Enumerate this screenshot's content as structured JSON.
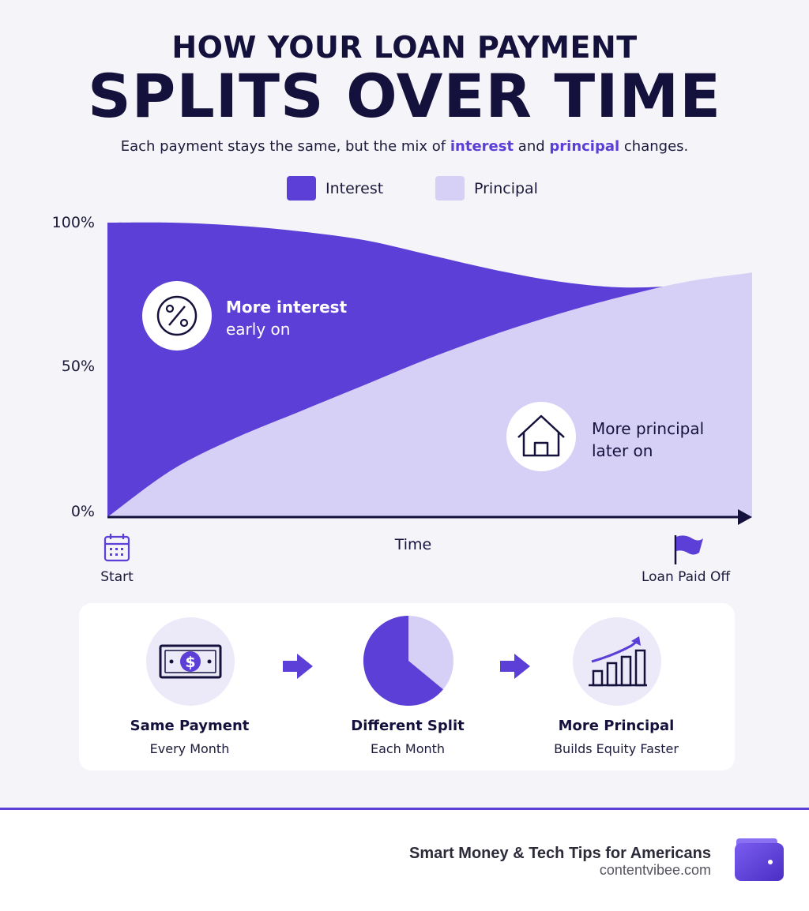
{
  "header": {
    "title_top": "HOW YOUR LOAN PAYMENT",
    "title_main": "SPLITS OVER TIME",
    "subtitle_pre": "Each payment stays the same, but the mix of ",
    "subtitle_interest": "interest",
    "subtitle_and": " and ",
    "subtitle_principal": "principal",
    "subtitle_post": " changes."
  },
  "colors": {
    "interest": "#5b3fd6",
    "principal": "#d6d0f7",
    "ink": "#14123d"
  },
  "chart_data": {
    "type": "area",
    "x": [
      0,
      0.1,
      0.2,
      0.3,
      0.4,
      0.5,
      0.6,
      0.7,
      0.8,
      0.9,
      1.0
    ],
    "series": [
      {
        "name": "Interest",
        "values": [
          100,
          100,
          99,
          97,
          94,
          89,
          84,
          80,
          78,
          79,
          83
        ]
      },
      {
        "name": "Principal",
        "values": [
          0,
          16,
          27,
          36,
          45,
          54,
          62,
          69,
          75,
          80,
          83
        ]
      }
    ],
    "ylim": [
      0,
      100
    ],
    "yticks": [
      "0%",
      "50%",
      "100%"
    ],
    "xlabel": "Time",
    "x_start_label": "Start",
    "x_end_label": "Loan Paid Off",
    "legend_position": "top",
    "annotations": [
      {
        "line1": "More interest",
        "line2": "early on",
        "icon": "percent-icon"
      },
      {
        "line1": "More principal",
        "line2": "later on",
        "icon": "house-icon"
      }
    ]
  },
  "steps": [
    {
      "title": "Same Payment",
      "sub": "Every Month",
      "icon": "dollar-bill-icon"
    },
    {
      "title": "Different Split",
      "sub": "Each Month",
      "icon": "pie-chart-icon",
      "pie_interest_fraction": 0.64
    },
    {
      "title": "More Principal",
      "sub": "Builds Equity Faster",
      "icon": "growth-chart-icon"
    }
  ],
  "footer": {
    "tagline": "Smart Money & Tech Tips for Americans",
    "url": "contentvibee.com",
    "logo_icon": "wallet-icon"
  }
}
